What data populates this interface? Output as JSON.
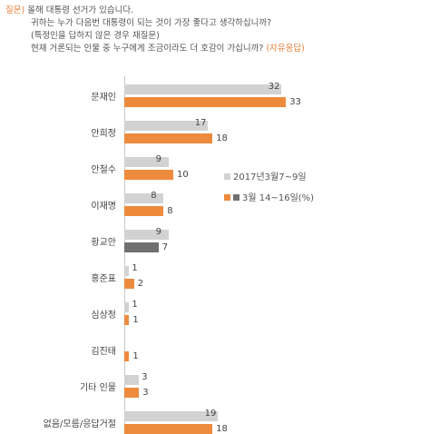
{
  "question": {
    "tag": "질문)",
    "line1": " 올해 대통령 선거가 있습니다.",
    "line2": "귀하는 누가 다음번 대통령이 되는 것이 가장 좋다고 생각하십니까?",
    "line3": "(특정인을 답하지 않은 경우 재질문)",
    "line4": "현재 거론되는 인물 중 누구에게 조금이라도 더 호감이 가십니까?",
    "line4_tag": " (자유응답)"
  },
  "chart_data": {
    "type": "bar",
    "orientation": "horizontal",
    "categories": [
      "문재인",
      "안희정",
      "안철수",
      "이재명",
      "황교안",
      "홍준표",
      "심상정",
      "김진태",
      "기타 인물",
      "없음/모름/응답거절"
    ],
    "series": [
      {
        "name": "2017년3월7~9일",
        "values": [
          32,
          17,
          9,
          8,
          9,
          1,
          1,
          null,
          3,
          19
        ],
        "color": "#d2d2d2"
      },
      {
        "name": "3월 14~16일(%)",
        "values": [
          33,
          18,
          10,
          8,
          7,
          2,
          1,
          1,
          3,
          18
        ],
        "color": "#ee8a3c"
      }
    ],
    "highlight_gray": {
      "category": "황교안",
      "color": "#707070"
    },
    "legend_position": "right",
    "xlim": [
      0,
      40
    ]
  },
  "legend": {
    "prev": "2017년3월7~9일",
    "curr": "3월 14~16일(%)"
  }
}
